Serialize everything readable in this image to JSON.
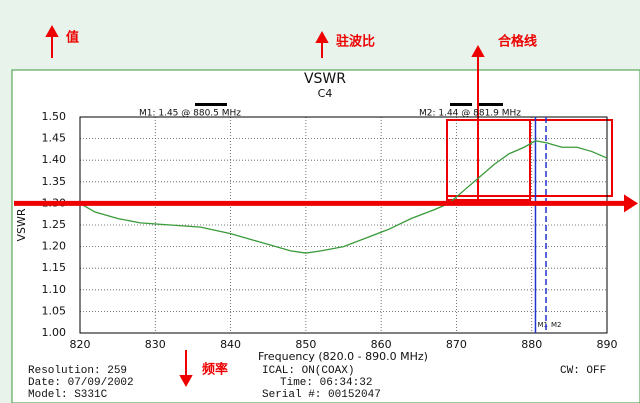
{
  "chart_data": {
    "type": "line",
    "title": "VSWR",
    "subtitle": "C4",
    "x_label": "Frequency (820.0 - 890.0 MHz)",
    "y_label": "VSWR",
    "x": [
      820,
      822,
      825,
      828,
      832,
      836,
      840,
      844,
      848,
      850,
      852,
      855,
      858,
      861,
      864,
      867,
      869,
      871,
      873,
      875,
      877,
      879,
      880.5,
      882,
      884,
      886,
      888,
      890
    ],
    "series": [
      {
        "color": "#3a9a3a",
        "values": [
          1.3,
          1.28,
          1.265,
          1.255,
          1.25,
          1.245,
          1.23,
          1.21,
          1.19,
          1.185,
          1.19,
          1.2,
          1.22,
          1.24,
          1.265,
          1.285,
          1.3,
          1.33,
          1.36,
          1.39,
          1.415,
          1.43,
          1.445,
          1.44,
          1.43,
          1.43,
          1.42,
          1.405
        ]
      }
    ],
    "xlim": [
      820,
      890
    ],
    "xticks": [
      820,
      830,
      840,
      850,
      860,
      870,
      880,
      890
    ],
    "ylim": [
      1.0,
      1.5
    ],
    "yticks": [
      {
        "value": 1.0,
        "label": "1.00"
      },
      {
        "value": 1.05,
        "label": "1.05"
      },
      {
        "value": 1.1,
        "label": "1.10"
      },
      {
        "value": 1.15,
        "label": "1.15"
      },
      {
        "value": 1.2,
        "label": "1.20"
      },
      {
        "value": 1.25,
        "label": "1.25"
      },
      {
        "value": 1.3,
        "label": "1.30"
      },
      {
        "value": 1.35,
        "label": "1.35"
      },
      {
        "value": 1.4,
        "label": "1.40"
      },
      {
        "value": 1.45,
        "label": "1.45"
      },
      {
        "value": {
          "value": 1.5,
          "label": "1.50"
        },
        "label": "1.50"
      }
    ],
    "grid": true,
    "markers": [
      {
        "name": "M1",
        "label": "M1: 1.45 @ 880.5 MHz",
        "x": 880.5,
        "color": "#2233cc"
      },
      {
        "name": "M2",
        "label": "M2: 1.44 @ 881.9 MHz",
        "x": 881.9,
        "color": "#2233cc"
      }
    ],
    "limit_line": {
      "label": "合格线",
      "value": 1.3,
      "color": "#e00"
    },
    "annotations": {
      "value_axis": "值",
      "vswr": "驻波比",
      "frequency": "频率"
    },
    "info": {
      "resolution": "Resolution: 259",
      "date": "Date: 07/09/2002",
      "model": "Model: S331C",
      "ical": "ICAL: ON(COAX)",
      "time": "Time: 06:34:32",
      "serial": "Serial #: 00152047",
      "cw": "CW: OFF"
    }
  }
}
